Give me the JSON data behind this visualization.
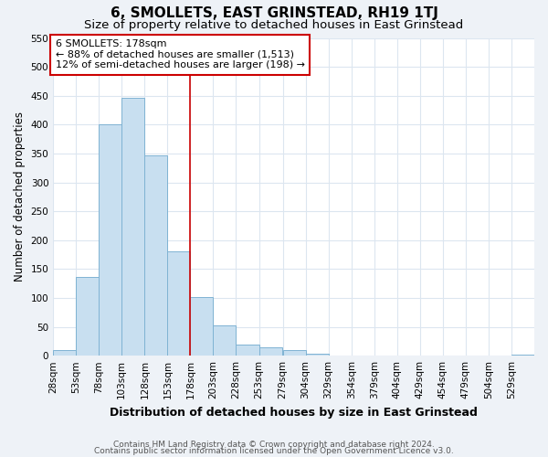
{
  "title": "6, SMOLLETS, EAST GRINSTEAD, RH19 1TJ",
  "subtitle": "Size of property relative to detached houses in East Grinstead",
  "xlabel": "Distribution of detached houses by size in East Grinstead",
  "ylabel": "Number of detached properties",
  "bin_labels": [
    "28sqm",
    "53sqm",
    "78sqm",
    "103sqm",
    "128sqm",
    "153sqm",
    "178sqm",
    "203sqm",
    "228sqm",
    "253sqm",
    "279sqm",
    "304sqm",
    "329sqm",
    "354sqm",
    "379sqm",
    "404sqm",
    "429sqm",
    "454sqm",
    "479sqm",
    "504sqm",
    "529sqm"
  ],
  "bar_values": [
    10,
    137,
    401,
    447,
    346,
    180,
    102,
    52,
    20,
    14,
    10,
    3,
    1,
    0,
    0,
    0,
    0,
    0,
    0,
    0,
    2
  ],
  "bin_starts": [
    28,
    53,
    78,
    103,
    128,
    153,
    178,
    203,
    228,
    253,
    279,
    304,
    329,
    354,
    379,
    404,
    429,
    454,
    479,
    504,
    529
  ],
  "bin_width": 25,
  "bar_color": "#c8dff0",
  "bar_edge_color": "#7fb3d3",
  "vline_x": 178,
  "vline_color": "#cc0000",
  "ylim": [
    0,
    550
  ],
  "xlim_left": 28,
  "xlim_right": 554,
  "annotation_title": "6 SMOLLETS: 178sqm",
  "annotation_line1": "← 88% of detached houses are smaller (1,513)",
  "annotation_line2": "12% of semi-detached houses are larger (198) →",
  "annotation_box_color": "#cc0000",
  "footer_line1": "Contains HM Land Registry data © Crown copyright and database right 2024.",
  "footer_line2": "Contains public sector information licensed under the Open Government Licence v3.0.",
  "plot_bg_color": "#ffffff",
  "fig_bg_color": "#eef2f7",
  "grid_color": "#dce6f0",
  "title_fontsize": 11,
  "subtitle_fontsize": 9.5,
  "xlabel_fontsize": 9,
  "ylabel_fontsize": 8.5,
  "tick_fontsize": 7.5,
  "annotation_fontsize": 8,
  "footer_fontsize": 6.5
}
